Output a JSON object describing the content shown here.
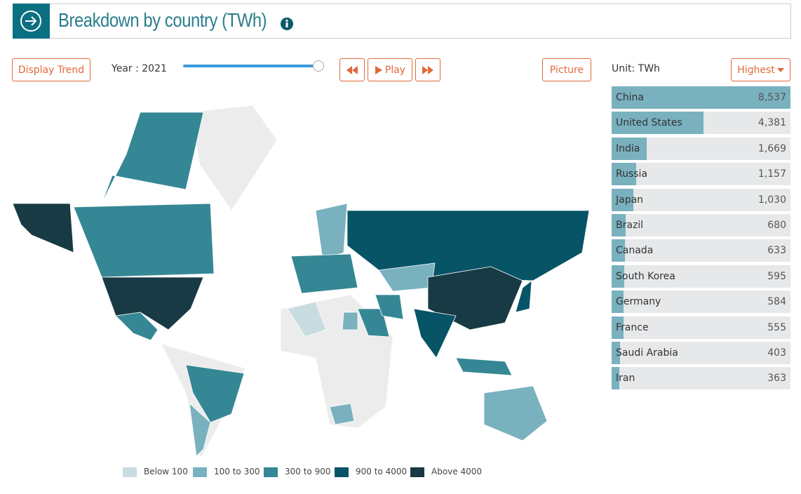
{
  "header": {
    "title": "Breakdown by country (TWh)"
  },
  "controls": {
    "display_trend": "Display Trend",
    "year_label": "Year : 2021",
    "play": "Play",
    "picture": "Picture",
    "unit": "Unit: TWh",
    "sort": "Highest"
  },
  "ranking": {
    "color": "#79b1bf",
    "items": [
      {
        "name": "China",
        "value": 8537,
        "value_label": "8,537"
      },
      {
        "name": "United States",
        "value": 4381,
        "value_label": "4,381"
      },
      {
        "name": "India",
        "value": 1669,
        "value_label": "1,669"
      },
      {
        "name": "Russia",
        "value": 1157,
        "value_label": "1,157"
      },
      {
        "name": "Japan",
        "value": 1030,
        "value_label": "1,030"
      },
      {
        "name": "Brazil",
        "value": 680,
        "value_label": "680"
      },
      {
        "name": "Canada",
        "value": 633,
        "value_label": "633"
      },
      {
        "name": "South Korea",
        "value": 595,
        "value_label": "595"
      },
      {
        "name": "Germany",
        "value": 584,
        "value_label": "584"
      },
      {
        "name": "France",
        "value": 555,
        "value_label": "555"
      },
      {
        "name": "Saudi Arabia",
        "value": 403,
        "value_label": "403"
      },
      {
        "name": "Iran",
        "value": 363,
        "value_label": "363"
      }
    ]
  },
  "legend": [
    {
      "label": "Below 100",
      "color": "#c9dce0"
    },
    {
      "label": "100 to 300",
      "color": "#79b1bf"
    },
    {
      "label": "300 to 900",
      "color": "#358795"
    },
    {
      "label": "900 to 4000",
      "color": "#075467"
    },
    {
      "label": "Above 4000",
      "color": "#173a44"
    }
  ]
}
